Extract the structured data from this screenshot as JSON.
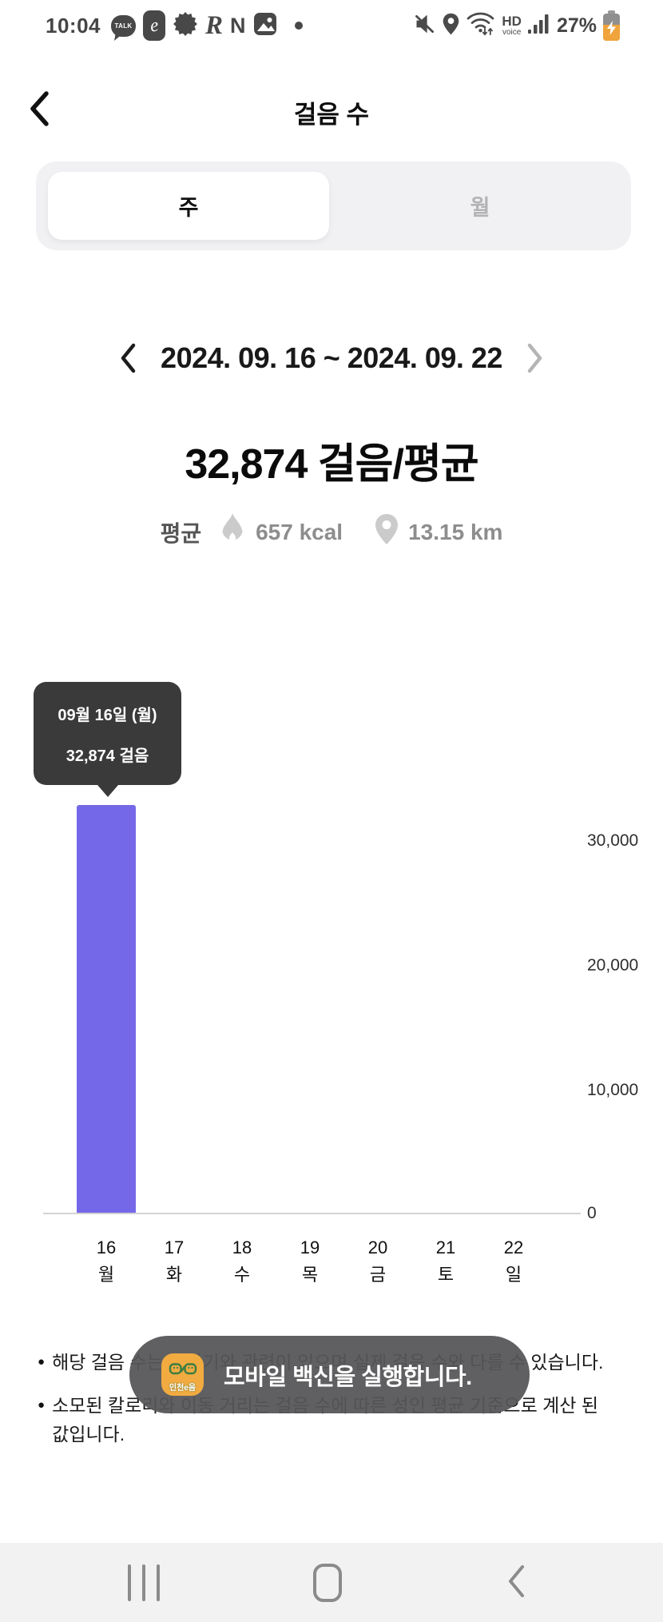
{
  "status_bar": {
    "time": "10:04",
    "battery_percent": "27%",
    "hd_label": "HD",
    "voice_label": "voice",
    "app_icons": {
      "kakao_label": "TALK",
      "eum_label": "e",
      "r_label": "R",
      "n_label": "N"
    }
  },
  "header": {
    "title": "걸음 수"
  },
  "tabs": {
    "week_label": "주",
    "month_label": "월"
  },
  "date_nav": {
    "range_label": "2024. 09. 16 ~ 2024. 09. 22"
  },
  "summary": {
    "steps_value": "32,874",
    "steps_unit": "걸음/평균",
    "avg_label": "평균",
    "calories_label": "657 kcal",
    "distance_label": "13.15 km"
  },
  "chart_data": {
    "type": "bar",
    "unit": "걸음",
    "categories": [
      {
        "day": "16",
        "weekday": "월"
      },
      {
        "day": "17",
        "weekday": "화"
      },
      {
        "day": "18",
        "weekday": "수"
      },
      {
        "day": "19",
        "weekday": "목"
      },
      {
        "day": "20",
        "weekday": "금"
      },
      {
        "day": "21",
        "weekday": "토"
      },
      {
        "day": "22",
        "weekday": "일"
      }
    ],
    "values": [
      32874,
      0,
      0,
      0,
      0,
      0,
      0
    ],
    "y_ticks": [
      "30,000",
      "20,000",
      "10,000",
      "0"
    ],
    "ylim": [
      0,
      35000
    ],
    "grid": false,
    "y_axis_side": "right",
    "bar_color": "#7568e8",
    "tooltip": {
      "date_label": "09월 16일 (월)",
      "value_label": "32,874 걸음"
    }
  },
  "notes": {
    "bullet": "●",
    "items": [
      {
        "lines": [
          "해당 걸음 수는 단말기와 관련이 있으며 실제 걸음 수와 다를 수 있습니다."
        ]
      },
      {
        "lines": [
          "소모된 칼로리와 이동 거리는 걸음 수에 따른 성인 평균 기준으로 계산 된",
          "값입니다."
        ]
      }
    ]
  },
  "toast": {
    "app_name": "인천e음",
    "message": "모바일 백신을 실행합니다."
  }
}
